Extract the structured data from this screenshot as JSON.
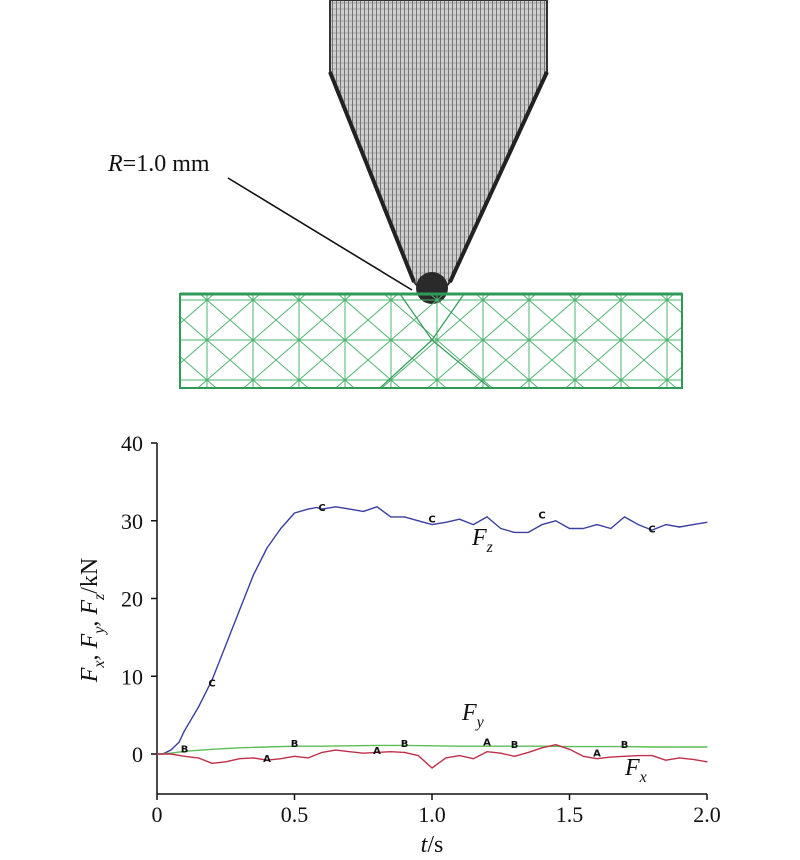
{
  "figure": {
    "annotation": {
      "prefix": "R",
      "value": "=1.0 mm"
    }
  },
  "chart_data": {
    "type": "line",
    "ylabel": {
      "parts": [
        [
          "F",
          "x",
          ", "
        ],
        [
          "F",
          "y",
          ", "
        ],
        [
          "F",
          "z",
          "/kN"
        ]
      ]
    },
    "xlabel": {
      "var": "t",
      "unit": "/s"
    },
    "xlim": [
      0,
      2.0
    ],
    "ylim": [
      -5,
      40
    ],
    "xticks": [
      "0",
      "0.5",
      "1.0",
      "1.5",
      "2.0"
    ],
    "yticks": [
      "0",
      "10",
      "20",
      "30",
      "40"
    ],
    "series": [
      {
        "name": "Fz",
        "label_main": "F",
        "label_sub": "z",
        "color": "#3a3fa0",
        "x": [
          0.0,
          0.02,
          0.05,
          0.08,
          0.1,
          0.15,
          0.2,
          0.25,
          0.3,
          0.35,
          0.4,
          0.45,
          0.5,
          0.55,
          0.58,
          0.6,
          0.65,
          0.7,
          0.75,
          0.8,
          0.85,
          0.9,
          0.95,
          1.0,
          1.05,
          1.1,
          1.15,
          1.2,
          1.25,
          1.3,
          1.35,
          1.4,
          1.45,
          1.5,
          1.55,
          1.6,
          1.65,
          1.7,
          1.75,
          1.8,
          1.85,
          1.9,
          1.95,
          2.0
        ],
        "y": [
          0.0,
          0.0,
          0.5,
          1.5,
          3.0,
          6.0,
          9.5,
          14.0,
          18.5,
          23.0,
          26.5,
          29.0,
          31.0,
          31.5,
          31.7,
          31.5,
          31.8,
          31.5,
          31.2,
          31.8,
          30.5,
          30.5,
          30.0,
          29.5,
          29.8,
          30.2,
          29.5,
          30.5,
          29.0,
          28.5,
          28.5,
          29.5,
          30.0,
          29.0,
          29.0,
          29.5,
          29.0,
          30.5,
          29.5,
          28.8,
          29.5,
          29.2,
          29.5,
          29.8
        ]
      },
      {
        "name": "Fy",
        "label_main": "F",
        "label_sub": "y",
        "color": "#5bbf55",
        "x": [
          0.0,
          0.05,
          0.1,
          0.2,
          0.3,
          0.4,
          0.5,
          0.6,
          0.7,
          0.8,
          0.9,
          1.0,
          1.1,
          1.2,
          1.3,
          1.4,
          1.5,
          1.6,
          1.7,
          1.8,
          1.9,
          2.0
        ],
        "y": [
          0.0,
          0.1,
          0.35,
          0.6,
          0.8,
          0.9,
          1.0,
          1.0,
          1.05,
          1.1,
          1.1,
          1.05,
          1.0,
          1.0,
          1.0,
          1.0,
          0.95,
          0.95,
          0.95,
          0.9,
          0.9,
          0.9
        ]
      },
      {
        "name": "Fx",
        "label_main": "F",
        "label_sub": "x",
        "color": "#c0304a",
        "x": [
          0.0,
          0.05,
          0.1,
          0.15,
          0.2,
          0.25,
          0.3,
          0.35,
          0.4,
          0.45,
          0.5,
          0.55,
          0.6,
          0.65,
          0.7,
          0.75,
          0.8,
          0.85,
          0.9,
          0.95,
          1.0,
          1.05,
          1.1,
          1.15,
          1.2,
          1.25,
          1.3,
          1.35,
          1.4,
          1.45,
          1.5,
          1.55,
          1.6,
          1.65,
          1.7,
          1.75,
          1.8,
          1.85,
          1.9,
          1.95,
          2.0
        ],
        "y": [
          0.0,
          0.0,
          -0.3,
          -0.5,
          -1.2,
          -1.0,
          -0.6,
          -0.5,
          -0.8,
          -0.6,
          -0.3,
          -0.5,
          0.2,
          0.5,
          0.3,
          0.1,
          0.2,
          0.3,
          0.2,
          -0.2,
          -1.8,
          -0.5,
          -0.2,
          -0.6,
          0.3,
          0.1,
          -0.3,
          0.2,
          0.8,
          1.2,
          0.6,
          -0.3,
          -0.6,
          -0.4,
          -0.3,
          -0.2,
          -0.2,
          -0.8,
          -0.5,
          -0.7,
          -1.0
        ]
      }
    ],
    "markers": [
      {
        "text": "C",
        "x": 0.2,
        "y": 9.2
      },
      {
        "text": "C",
        "x": 0.6,
        "y": 31.8
      },
      {
        "text": "C",
        "x": 1.0,
        "y": 30.3
      },
      {
        "text": "C",
        "x": 1.4,
        "y": 30.8
      },
      {
        "text": "C",
        "x": 1.8,
        "y": 29.0
      },
      {
        "text": "B",
        "x": 0.1,
        "y": 0.7
      },
      {
        "text": "B",
        "x": 0.5,
        "y": 1.4
      },
      {
        "text": "B",
        "x": 0.9,
        "y": 1.4
      },
      {
        "text": "B",
        "x": 1.3,
        "y": 1.3
      },
      {
        "text": "B",
        "x": 1.7,
        "y": 1.3
      },
      {
        "text": "A",
        "x": 0.4,
        "y": -0.5
      },
      {
        "text": "A",
        "x": 0.8,
        "y": 0.5
      },
      {
        "text": "A",
        "x": 1.2,
        "y": 1.6
      },
      {
        "text": "A",
        "x": 1.6,
        "y": 0.2
      }
    ]
  }
}
